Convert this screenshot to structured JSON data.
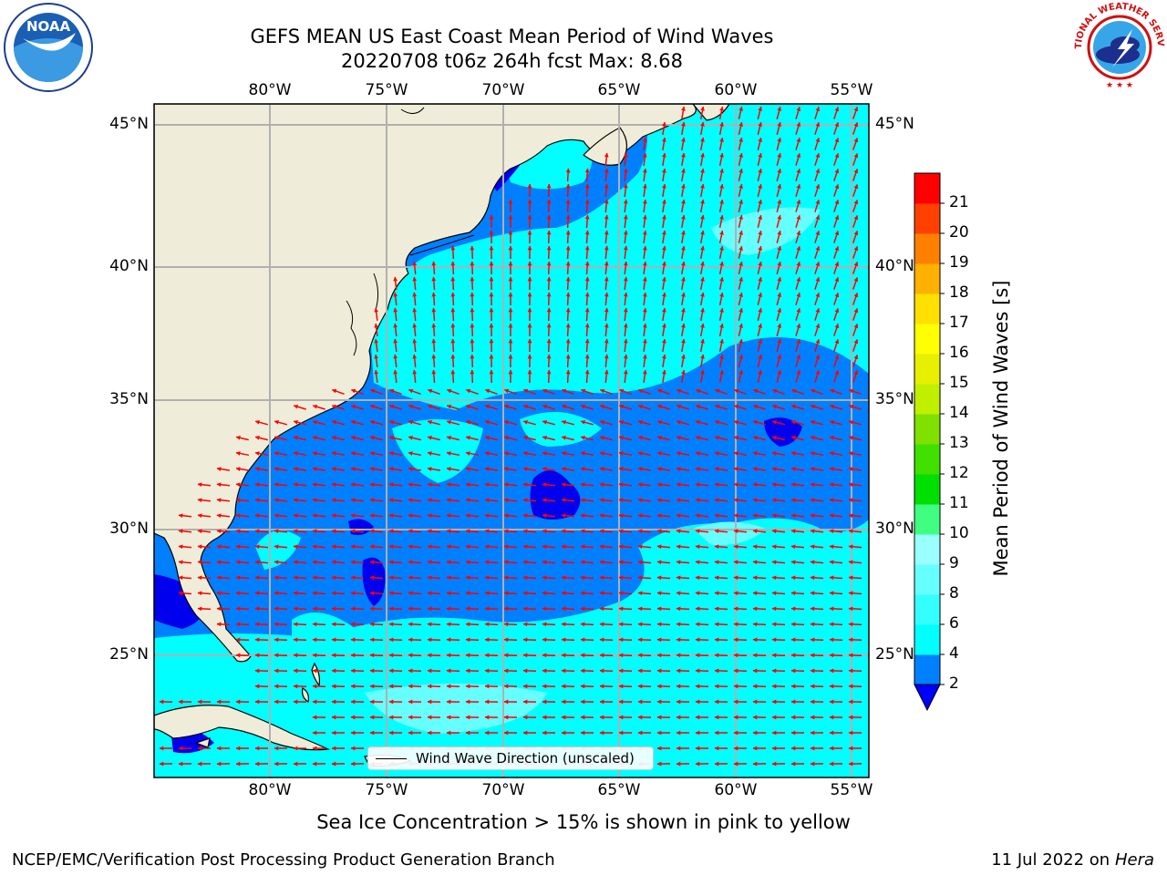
{
  "header": {
    "title_line1": "GEFS MEAN US East Coast Mean Period of Wind Waves",
    "title_line2": "20220708 t06z 264h fcst   Max: 8.68"
  },
  "logos": {
    "left": "NOAA",
    "right_ring": "NATIONAL WEATHER SERVICE"
  },
  "map": {
    "lon_ticks": [
      "80°W",
      "75°W",
      "70°W",
      "65°W",
      "60°W",
      "55°W"
    ],
    "lat_ticks": [
      "45°N",
      "40°N",
      "35°N",
      "30°N",
      "25°N"
    ],
    "colors": {
      "land": "#efedd9",
      "sea_light": "#00ffff",
      "sea_mid": "#007fff",
      "sea_dark": "#0000ee",
      "arrow": "#ff0000",
      "grid": "#b0b0b0"
    }
  },
  "colorbar": {
    "label": "Mean Period of Wind Waves [s]",
    "ticks": [
      "2",
      "4",
      "6",
      "8",
      "9",
      "10",
      "11",
      "12",
      "13",
      "14",
      "15",
      "16",
      "17",
      "18",
      "19",
      "20",
      "21"
    ],
    "colors": [
      "#0080ff",
      "#00ffff",
      "#33ffff",
      "#66ffff",
      "#99ffff",
      "#40ff80",
      "#00e000",
      "#40e000",
      "#80e000",
      "#c0ef00",
      "#e6f000",
      "#ffff00",
      "#ffe000",
      "#ffb000",
      "#ff8000",
      "#ff4000",
      "#ff0000"
    ],
    "extend_low_color": "#0000ff"
  },
  "legend": {
    "label": "Wind Wave Direction (unscaled)"
  },
  "footer": {
    "ice_note": "Sea Ice Concentration > 15% is shown in pink to yellow",
    "left": "NCEP/EMC/Verification Post Processing Product Generation Branch",
    "right_date": "11 Jul 2022 on",
    "right_host": "Hera"
  }
}
